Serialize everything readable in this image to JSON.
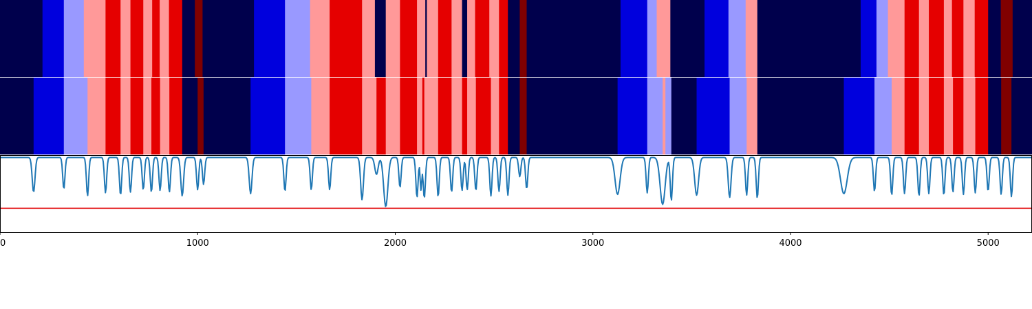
{
  "chart_data": {
    "type": "heatmap",
    "description_free": true,
    "x_range": [
      0,
      5222
    ],
    "x_ticks": [
      0,
      1000,
      2000,
      3000,
      4000,
      5000
    ],
    "x_tick_labels": [
      "0",
      "1000",
      "2000",
      "3000",
      "4000",
      "5000"
    ],
    "state_colors": {
      "0": "#00004c",
      "1": "#0000dd",
      "2": "#9999ff",
      "3": "#ff9999",
      "4": "#e50000",
      "5": "#800000"
    },
    "rows": [
      {
        "segments": [
          [
            0,
            215,
            0
          ],
          [
            215,
            323,
            1
          ],
          [
            323,
            424,
            2
          ],
          [
            424,
            534,
            3
          ],
          [
            534,
            610,
            4
          ],
          [
            610,
            660,
            3
          ],
          [
            660,
            725,
            4
          ],
          [
            725,
            770,
            3
          ],
          [
            770,
            808,
            4
          ],
          [
            808,
            855,
            3
          ],
          [
            855,
            922,
            4
          ],
          [
            922,
            986,
            0
          ],
          [
            986,
            1025,
            5
          ],
          [
            1025,
            1285,
            0
          ],
          [
            1285,
            1442,
            1
          ],
          [
            1442,
            1569,
            2
          ],
          [
            1569,
            1668,
            3
          ],
          [
            1668,
            1832,
            4
          ],
          [
            1832,
            1897,
            3
          ],
          [
            1897,
            1952,
            0
          ],
          [
            1952,
            2024,
            3
          ],
          [
            2024,
            2110,
            4
          ],
          [
            2110,
            2152,
            3
          ],
          [
            2152,
            2160,
            0
          ],
          [
            2160,
            2217,
            3
          ],
          [
            2217,
            2285,
            4
          ],
          [
            2285,
            2338,
            3
          ],
          [
            2338,
            2364,
            0
          ],
          [
            2364,
            2404,
            3
          ],
          [
            2404,
            2476,
            4
          ],
          [
            2476,
            2525,
            3
          ],
          [
            2525,
            2570,
            4
          ],
          [
            2570,
            2630,
            0
          ],
          [
            2630,
            2665,
            5
          ],
          [
            2665,
            3140,
            0
          ],
          [
            3140,
            3275,
            1
          ],
          [
            3275,
            3323,
            2
          ],
          [
            3323,
            3392,
            3
          ],
          [
            3392,
            3565,
            0
          ],
          [
            3565,
            3686,
            1
          ],
          [
            3686,
            3773,
            2
          ],
          [
            3773,
            3832,
            3
          ],
          [
            3832,
            4355,
            0
          ],
          [
            4355,
            4435,
            1
          ],
          [
            4435,
            4493,
            2
          ],
          [
            4493,
            4577,
            3
          ],
          [
            4577,
            4650,
            4
          ],
          [
            4650,
            4700,
            3
          ],
          [
            4700,
            4776,
            4
          ],
          [
            4776,
            4817,
            3
          ],
          [
            4817,
            4875,
            4
          ],
          [
            4875,
            4932,
            3
          ],
          [
            4932,
            5000,
            4
          ],
          [
            5000,
            5064,
            0
          ],
          [
            5064,
            5124,
            5
          ],
          [
            5124,
            5222,
            0
          ]
        ]
      },
      {
        "segments": [
          [
            0,
            170,
            0
          ],
          [
            170,
            323,
            1
          ],
          [
            323,
            443,
            2
          ],
          [
            443,
            534,
            3
          ],
          [
            534,
            610,
            4
          ],
          [
            610,
            660,
            3
          ],
          [
            660,
            725,
            4
          ],
          [
            725,
            766,
            3
          ],
          [
            766,
            810,
            4
          ],
          [
            810,
            857,
            3
          ],
          [
            857,
            922,
            4
          ],
          [
            922,
            1000,
            0
          ],
          [
            1000,
            1030,
            5
          ],
          [
            1030,
            1268,
            0
          ],
          [
            1268,
            1442,
            1
          ],
          [
            1442,
            1575,
            2
          ],
          [
            1575,
            1668,
            3
          ],
          [
            1668,
            1832,
            4
          ],
          [
            1832,
            1905,
            3
          ],
          [
            1905,
            1952,
            4
          ],
          [
            1952,
            2024,
            3
          ],
          [
            2024,
            2110,
            4
          ],
          [
            2110,
            2137,
            3
          ],
          [
            2137,
            2147,
            4
          ],
          [
            2147,
            2217,
            3
          ],
          [
            2217,
            2285,
            4
          ],
          [
            2285,
            2338,
            3
          ],
          [
            2338,
            2364,
            4
          ],
          [
            2364,
            2408,
            3
          ],
          [
            2408,
            2484,
            4
          ],
          [
            2484,
            2525,
            3
          ],
          [
            2525,
            2570,
            4
          ],
          [
            2570,
            2630,
            0
          ],
          [
            2630,
            2665,
            5
          ],
          [
            2665,
            3125,
            0
          ],
          [
            3125,
            3275,
            1
          ],
          [
            3275,
            3353,
            2
          ],
          [
            3353,
            3367,
            3
          ],
          [
            3367,
            3397,
            2
          ],
          [
            3397,
            3525,
            0
          ],
          [
            3525,
            3692,
            1
          ],
          [
            3692,
            3778,
            2
          ],
          [
            3778,
            3832,
            3
          ],
          [
            3832,
            4270,
            0
          ],
          [
            4270,
            4425,
            1
          ],
          [
            4425,
            4512,
            2
          ],
          [
            4512,
            4577,
            3
          ],
          [
            4577,
            4650,
            4
          ],
          [
            4650,
            4700,
            3
          ],
          [
            4700,
            4776,
            4
          ],
          [
            4776,
            4822,
            3
          ],
          [
            4822,
            4875,
            4
          ],
          [
            4875,
            4935,
            3
          ],
          [
            4935,
            5000,
            4
          ],
          [
            5000,
            5066,
            0
          ],
          [
            5066,
            5118,
            5
          ],
          [
            5118,
            5222,
            0
          ]
        ]
      }
    ],
    "line_panel": {
      "series_color": "#1f77b4",
      "threshold_color": "#e41a1c",
      "ylim": [
        0,
        1
      ],
      "threshold": 0.31,
      "baseline": 0.97,
      "dips": [
        [
          170,
          0.52,
          10
        ],
        [
          323,
          0.56,
          8
        ],
        [
          443,
          0.47,
          8
        ],
        [
          534,
          0.51,
          8
        ],
        [
          610,
          0.48,
          8
        ],
        [
          660,
          0.52,
          8
        ],
        [
          725,
          0.55,
          8
        ],
        [
          766,
          0.52,
          8
        ],
        [
          810,
          0.54,
          8
        ],
        [
          857,
          0.52,
          8
        ],
        [
          922,
          0.47,
          10
        ],
        [
          1000,
          0.55,
          8
        ],
        [
          1030,
          0.62,
          8
        ],
        [
          1268,
          0.5,
          10
        ],
        [
          1442,
          0.53,
          8
        ],
        [
          1575,
          0.55,
          8
        ],
        [
          1668,
          0.55,
          8
        ],
        [
          1832,
          0.42,
          10
        ],
        [
          1905,
          0.75,
          12
        ],
        [
          1952,
          0.33,
          15
        ],
        [
          2024,
          0.58,
          8
        ],
        [
          2110,
          0.45,
          8
        ],
        [
          2130,
          0.55,
          6
        ],
        [
          2147,
          0.44,
          8
        ],
        [
          2217,
          0.46,
          8
        ],
        [
          2285,
          0.52,
          8
        ],
        [
          2338,
          0.54,
          8
        ],
        [
          2364,
          0.55,
          8
        ],
        [
          2408,
          0.54,
          8
        ],
        [
          2484,
          0.47,
          8
        ],
        [
          2525,
          0.53,
          8
        ],
        [
          2570,
          0.48,
          8
        ],
        [
          2630,
          0.72,
          8
        ],
        [
          2665,
          0.56,
          8
        ],
        [
          3125,
          0.49,
          18
        ],
        [
          3275,
          0.51,
          8
        ],
        [
          3353,
          0.36,
          18
        ],
        [
          3397,
          0.41,
          8
        ],
        [
          3525,
          0.48,
          14
        ],
        [
          3692,
          0.45,
          10
        ],
        [
          3778,
          0.48,
          8
        ],
        [
          3832,
          0.44,
          8
        ],
        [
          4270,
          0.5,
          24
        ],
        [
          4425,
          0.53,
          8
        ],
        [
          4512,
          0.48,
          8
        ],
        [
          4577,
          0.5,
          8
        ],
        [
          4650,
          0.47,
          8
        ],
        [
          4700,
          0.5,
          8
        ],
        [
          4776,
          0.48,
          8
        ],
        [
          4822,
          0.52,
          8
        ],
        [
          4875,
          0.49,
          8
        ],
        [
          4935,
          0.51,
          8
        ],
        [
          5000,
          0.53,
          8
        ],
        [
          5066,
          0.49,
          8
        ],
        [
          5118,
          0.46,
          8
        ]
      ]
    }
  }
}
